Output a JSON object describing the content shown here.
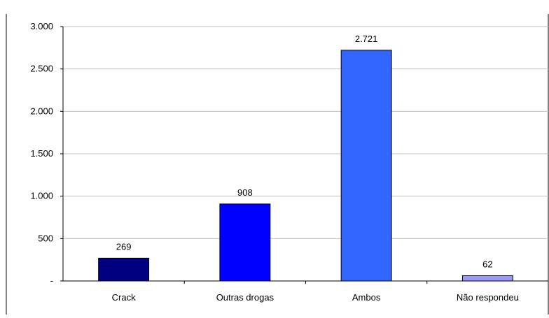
{
  "chart_data": {
    "type": "bar",
    "title": "",
    "categories": [
      "Crack",
      "Outras drogas",
      "Ambos",
      "Não respondeu"
    ],
    "values": [
      269,
      908,
      2721,
      62
    ],
    "value_labels": [
      "269",
      "908",
      "2.721",
      "62"
    ],
    "yticks": [
      0,
      500,
      1000,
      1500,
      2000,
      2500,
      3000
    ],
    "ytick_labels": [
      "-",
      "500",
      "1.000",
      "1.500",
      "2.000",
      "2.500",
      "3.000"
    ],
    "ylim": [
      0,
      3000
    ],
    "xlabel": "",
    "ylabel": "",
    "grid": true,
    "bar_colors": [
      "#000080",
      "#0000ff",
      "#3366ff",
      "#9999ff"
    ]
  }
}
